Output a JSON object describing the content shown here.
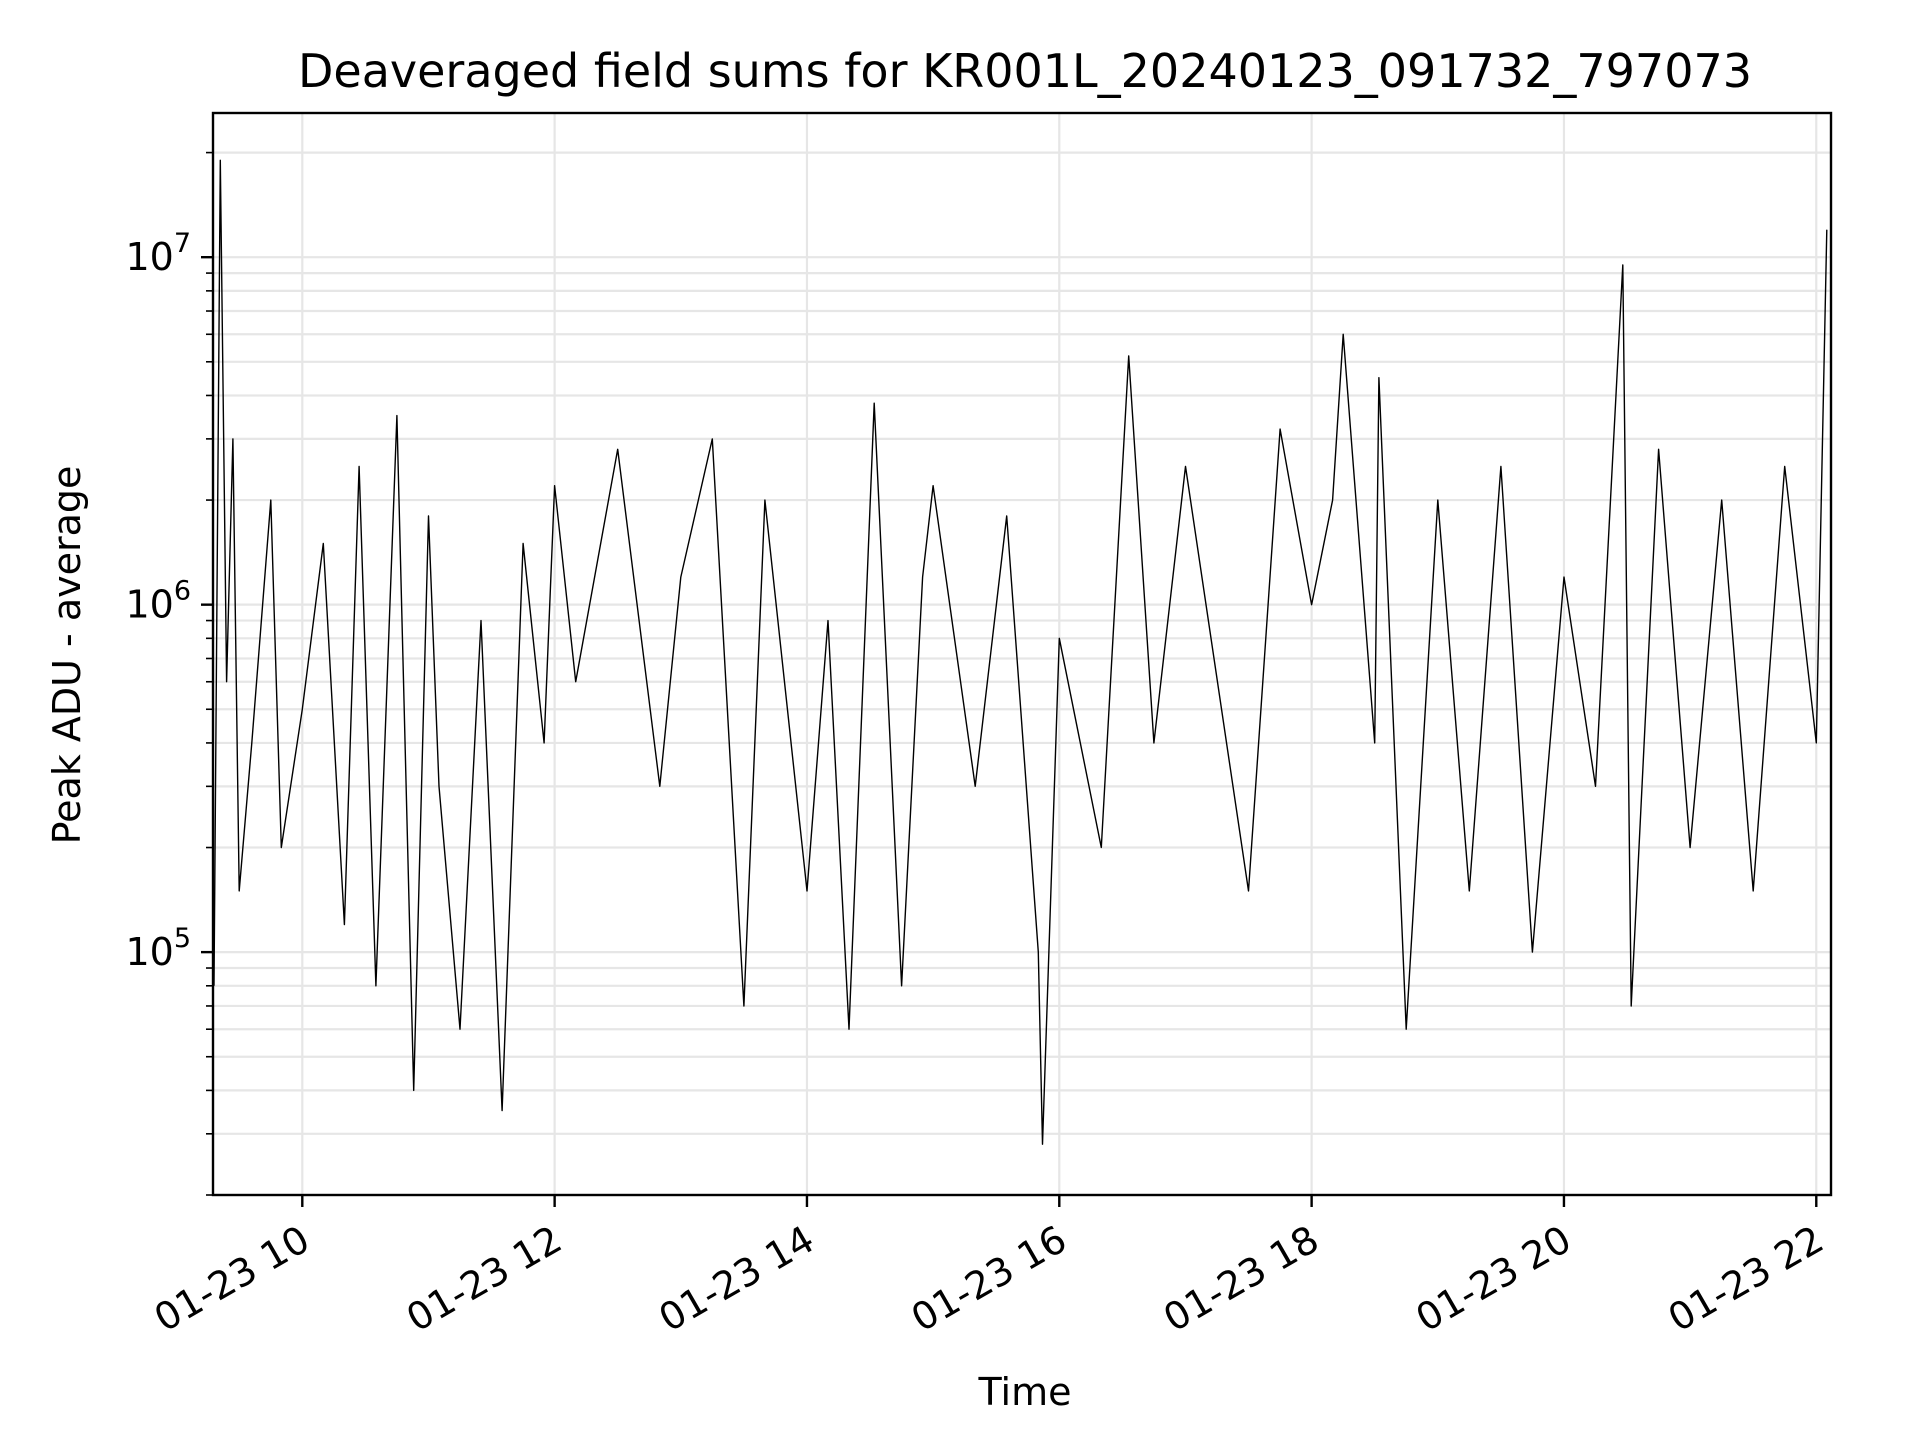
{
  "chart_data": {
    "type": "line",
    "title": "Deaveraged field sums for KR001L_20240123_091732_797073",
    "xlabel": "Time",
    "ylabel": "Peak ADU - average",
    "yscale": "log",
    "ylim": [
      20000,
      26000000
    ],
    "xlim": [
      "2024-01-23 09:17:32",
      "2024-01-23 22:07:00"
    ],
    "grid": true,
    "legend": "none",
    "x_ticks": [
      {
        "value": "2024-01-23 10:00",
        "label": "01-23 10"
      },
      {
        "value": "2024-01-23 12:00",
        "label": "01-23 12"
      },
      {
        "value": "2024-01-23 14:00",
        "label": "01-23 14"
      },
      {
        "value": "2024-01-23 16:00",
        "label": "01-23 16"
      },
      {
        "value": "2024-01-23 18:00",
        "label": "01-23 18"
      },
      {
        "value": "2024-01-23 20:00",
        "label": "01-23 20"
      },
      {
        "value": "2024-01-23 22:00",
        "label": "01-23 22"
      }
    ],
    "y_ticks": [
      {
        "value": 100000,
        "base": "10",
        "exp": "5"
      },
      {
        "value": 1000000,
        "base": "10",
        "exp": "6"
      },
      {
        "value": 10000000,
        "base": "10",
        "exp": "7"
      }
    ],
    "series": [
      {
        "color": "#000000",
        "x": [
          "2024-01-23 09:18",
          "2024-01-23 09:21",
          "2024-01-23 09:24",
          "2024-01-23 09:27",
          "2024-01-23 09:30",
          "2024-01-23 09:36",
          "2024-01-23 09:45",
          "2024-01-23 09:50",
          "2024-01-23 10:00",
          "2024-01-23 10:10",
          "2024-01-23 10:20",
          "2024-01-23 10:27",
          "2024-01-23 10:35",
          "2024-01-23 10:45",
          "2024-01-23 10:53",
          "2024-01-23 11:00",
          "2024-01-23 11:05",
          "2024-01-23 11:15",
          "2024-01-23 11:25",
          "2024-01-23 11:35",
          "2024-01-23 11:45",
          "2024-01-23 11:55",
          "2024-01-23 12:00",
          "2024-01-23 12:10",
          "2024-01-23 12:30",
          "2024-01-23 12:50",
          "2024-01-23 13:00",
          "2024-01-23 13:15",
          "2024-01-23 13:30",
          "2024-01-23 13:40",
          "2024-01-23 14:00",
          "2024-01-23 14:10",
          "2024-01-23 14:20",
          "2024-01-23 14:32",
          "2024-01-23 14:45",
          "2024-01-23 14:55",
          "2024-01-23 15:00",
          "2024-01-23 15:20",
          "2024-01-23 15:35",
          "2024-01-23 15:50",
          "2024-01-23 15:52",
          "2024-01-23 16:00",
          "2024-01-23 16:20",
          "2024-01-23 16:33",
          "2024-01-23 16:45",
          "2024-01-23 17:00",
          "2024-01-23 17:30",
          "2024-01-23 17:45",
          "2024-01-23 18:00",
          "2024-01-23 18:10",
          "2024-01-23 18:15",
          "2024-01-23 18:30",
          "2024-01-23 18:32",
          "2024-01-23 18:45",
          "2024-01-23 19:00",
          "2024-01-23 19:15",
          "2024-01-23 19:30",
          "2024-01-23 19:45",
          "2024-01-23 20:00",
          "2024-01-23 20:15",
          "2024-01-23 20:28",
          "2024-01-23 20:32",
          "2024-01-23 20:45",
          "2024-01-23 21:00",
          "2024-01-23 21:15",
          "2024-01-23 21:30",
          "2024-01-23 21:45",
          "2024-01-23 22:00",
          "2024-01-23 22:05"
        ],
        "y": [
          80000,
          19000000,
          600000,
          3000000,
          150000,
          400000,
          2000000,
          200000,
          500000,
          1500000,
          120000,
          2500000,
          80000,
          3500000,
          40000,
          1800000,
          300000,
          60000,
          900000,
          35000,
          1500000,
          400000,
          2200000,
          600000,
          2800000,
          300000,
          1200000,
          3000000,
          70000,
          2000000,
          150000,
          900000,
          60000,
          3800000,
          80000,
          1200000,
          2200000,
          300000,
          1800000,
          100000,
          28000,
          800000,
          200000,
          5200000,
          400000,
          2500000,
          150000,
          3200000,
          1000000,
          2000000,
          6000000,
          400000,
          4500000,
          60000,
          2000000,
          150000,
          2500000,
          100000,
          1200000,
          300000,
          9500000,
          70000,
          2800000,
          200000,
          2000000,
          150000,
          2500000,
          400000,
          12000000
        ]
      }
    ]
  }
}
